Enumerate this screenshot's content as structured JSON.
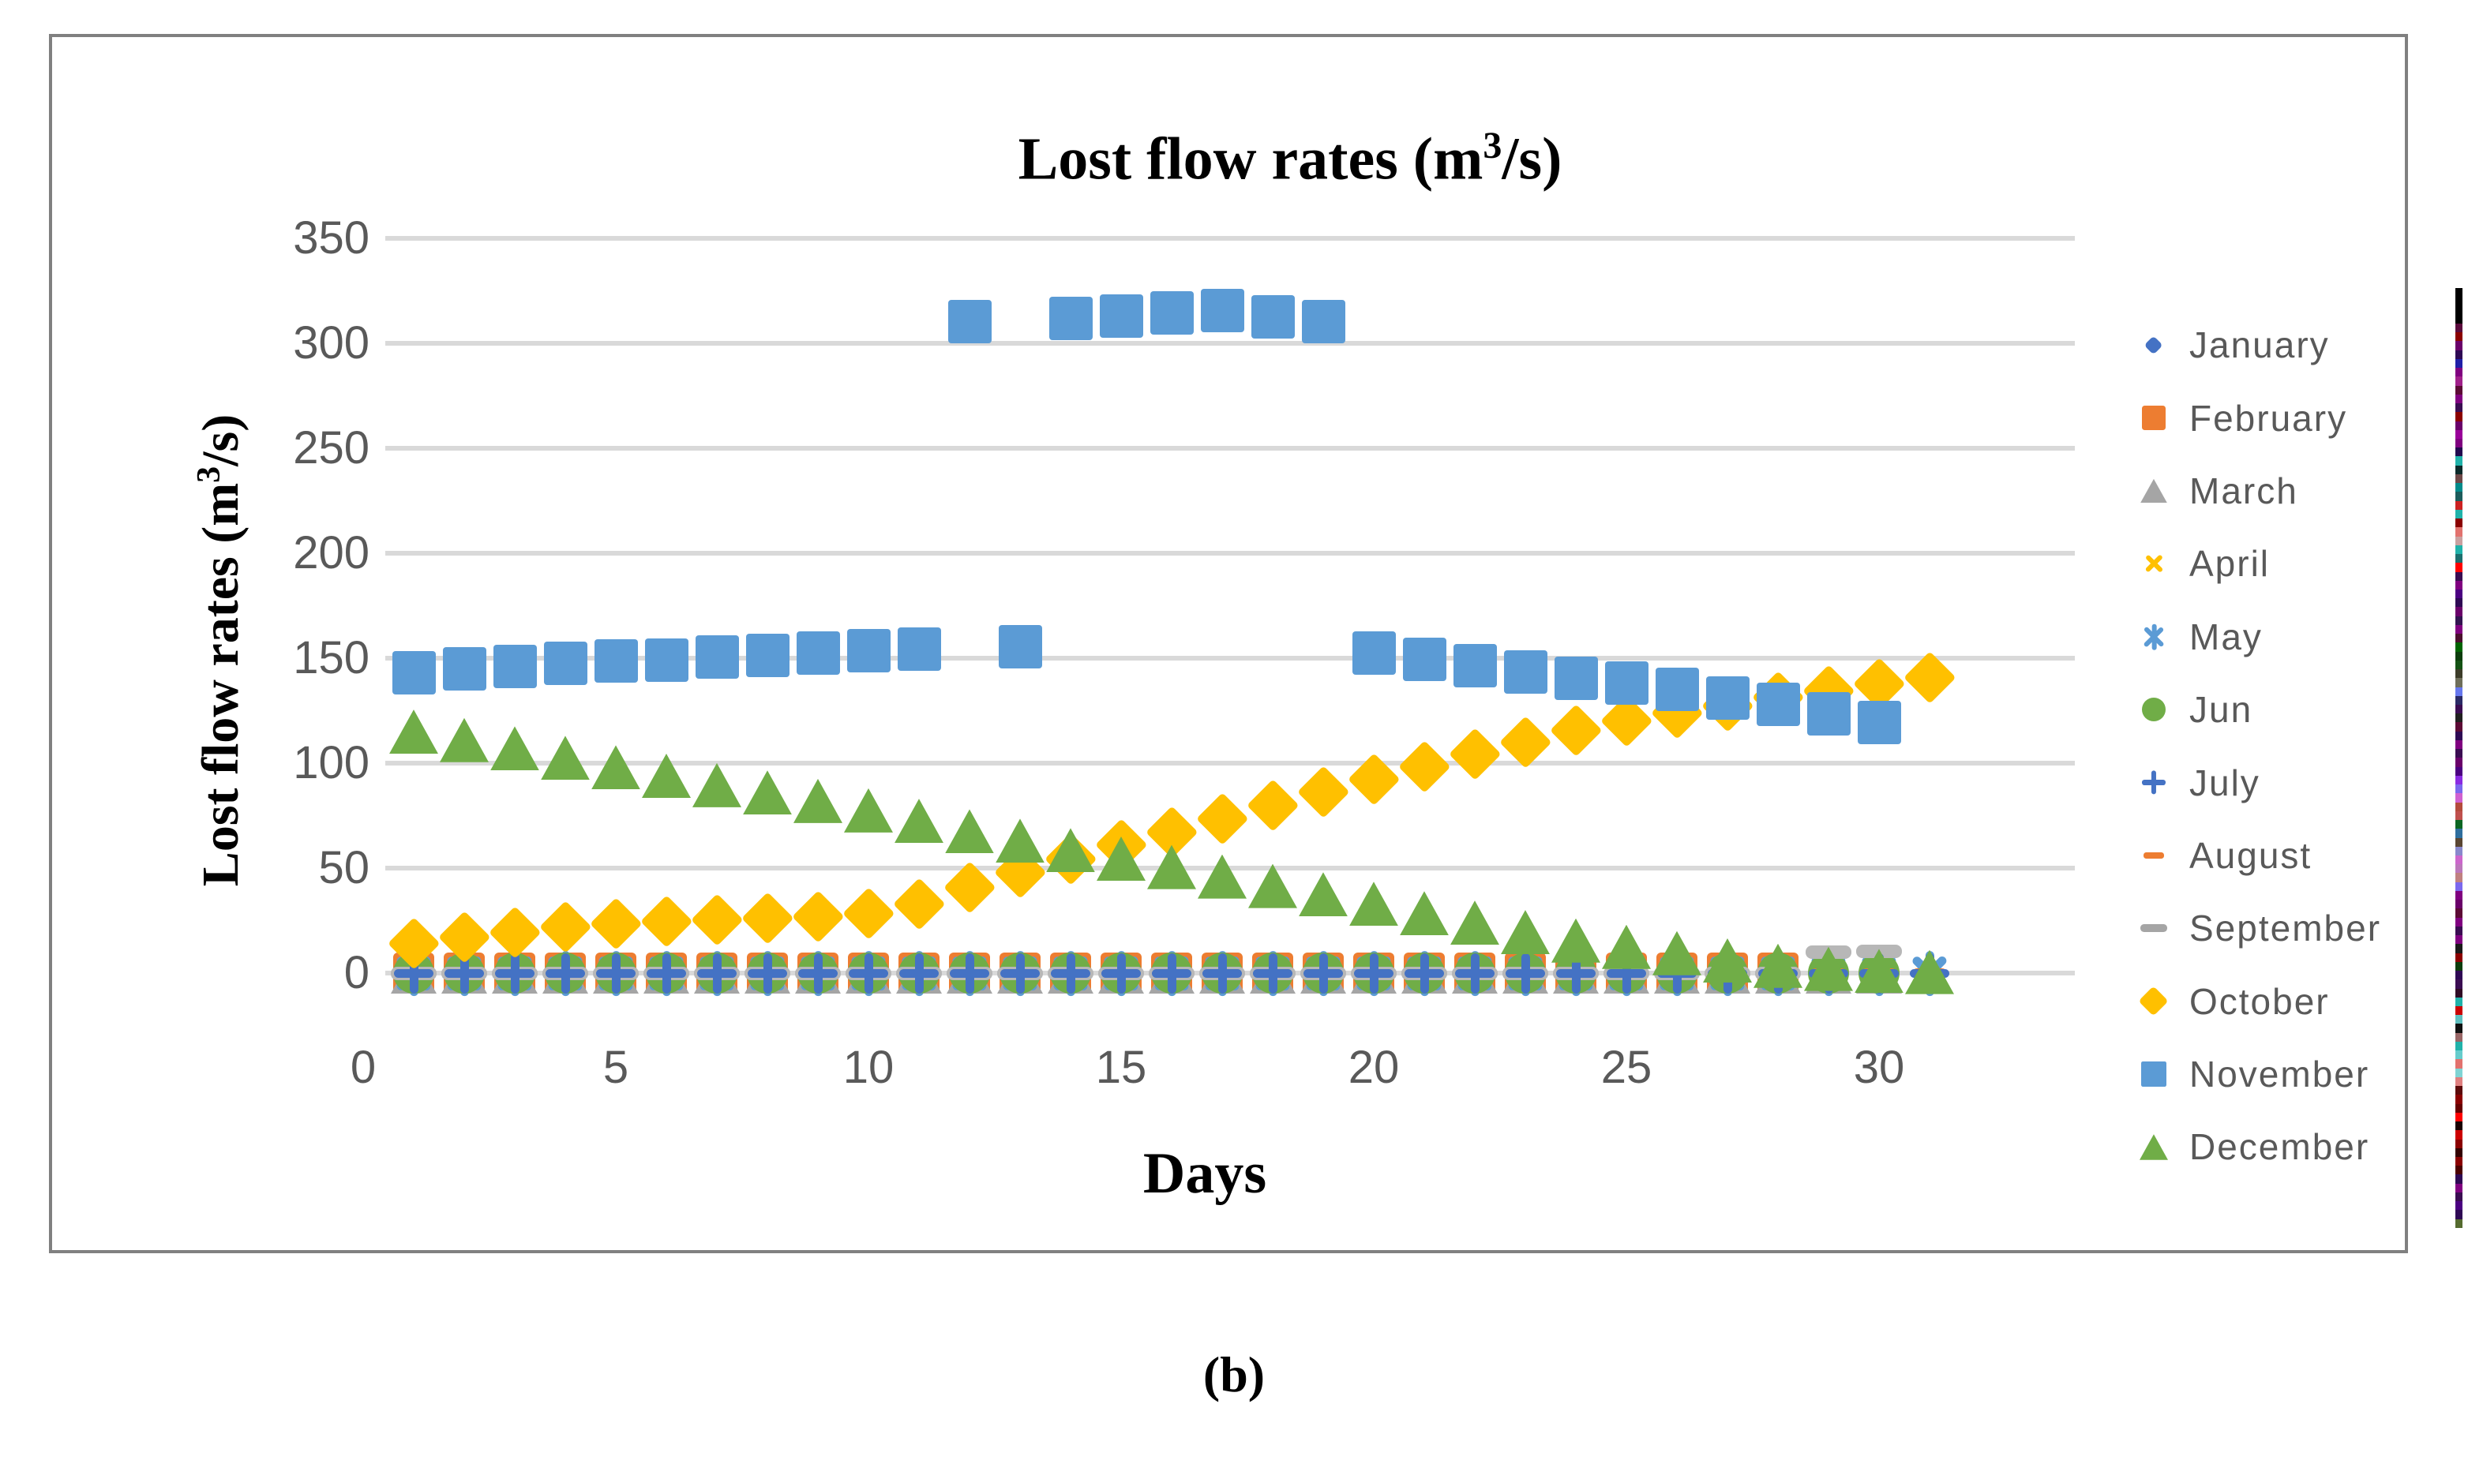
{
  "figure": {
    "caption": "(b)",
    "border_color": "#808080",
    "background": "#ffffff"
  },
  "chart": {
    "title": {
      "pre": "Lost flow rates (m",
      "sup": "3",
      "post": "/s)"
    },
    "y_axis": {
      "title": {
        "pre": "Lost flow rates (m",
        "sup": "3",
        "post": "/s)"
      },
      "ticks": [
        0,
        50,
        100,
        150,
        200,
        250,
        300,
        350
      ],
      "min": 0,
      "max": 350
    },
    "x_axis": {
      "title": "Days",
      "ticks": [
        0,
        5,
        10,
        15,
        20,
        25,
        30
      ],
      "min": 0,
      "max": 32
    },
    "colors": {
      "gridline": "#D9D9D9",
      "tick_text": "#595959",
      "legend_text": "#595959",
      "border": "#808080",
      "title_text": "#000000"
    }
  },
  "chart_data": {
    "type": "scatter",
    "title": "Lost flow rates (m3/s)",
    "xlabel": "Days",
    "ylabel": "Lost flow rates (m3/s)",
    "x": [
      1,
      2,
      3,
      4,
      5,
      6,
      7,
      8,
      9,
      10,
      11,
      12,
      13,
      14,
      15,
      16,
      17,
      18,
      19,
      20,
      21,
      22,
      23,
      24,
      25,
      26,
      27,
      28,
      29,
      30,
      31
    ],
    "xlim": [
      0,
      32
    ],
    "ylim": [
      0,
      350
    ],
    "grid": true,
    "legend_position": "right",
    "series": [
      {
        "name": "January",
        "marker": "diamond",
        "color": "#4472C4",
        "values": [
          0,
          0,
          0,
          0,
          0,
          0,
          0,
          0,
          0,
          0,
          0,
          0,
          0,
          0,
          0,
          0,
          0,
          0,
          0,
          0,
          0,
          0,
          0,
          0,
          0,
          0,
          0,
          0,
          0,
          0,
          0
        ]
      },
      {
        "name": "February",
        "marker": "square",
        "color": "#ED7D31",
        "values": [
          0,
          0,
          0,
          0,
          0,
          0,
          0,
          0,
          0,
          0,
          0,
          0,
          0,
          0,
          0,
          0,
          0,
          0,
          0,
          0,
          0,
          0,
          0,
          0,
          0,
          0,
          0,
          0,
          null,
          null,
          null
        ]
      },
      {
        "name": "March",
        "marker": "triangle",
        "color": "#A5A5A5",
        "values": [
          0,
          0,
          0,
          0,
          0,
          0,
          0,
          0,
          0,
          0,
          0,
          0,
          0,
          0,
          0,
          0,
          0,
          0,
          0,
          0,
          0,
          0,
          0,
          0,
          0,
          0,
          0,
          0,
          0,
          0,
          0
        ]
      },
      {
        "name": "April",
        "marker": "x",
        "color": "#FFC000",
        "values": [
          0,
          0,
          0,
          0,
          0,
          0,
          0,
          0,
          0,
          0,
          0,
          0,
          0,
          0,
          0,
          0,
          0,
          0,
          0,
          0,
          0,
          0,
          0,
          0,
          0,
          0,
          0,
          0,
          0,
          0,
          null
        ]
      },
      {
        "name": "May",
        "marker": "asterisk",
        "color": "#5B9BD5",
        "values": [
          0,
          0,
          0,
          0,
          0,
          0,
          0,
          0,
          0,
          0,
          0,
          0,
          0,
          0,
          0,
          0,
          0,
          0,
          0,
          0,
          0,
          0,
          0,
          0,
          0,
          0,
          0,
          0,
          0,
          0,
          0
        ]
      },
      {
        "name": "Jun",
        "marker": "circle",
        "color": "#70AD47",
        "values": [
          0,
          0,
          0,
          0,
          0,
          0,
          0,
          0,
          0,
          0,
          0,
          0,
          0,
          0,
          0,
          0,
          0,
          0,
          0,
          0,
          0,
          0,
          0,
          0,
          0,
          0,
          0,
          0,
          0,
          0,
          null
        ]
      },
      {
        "name": "July",
        "marker": "plus",
        "color": "#4472C4",
        "values": [
          0,
          0,
          0,
          0,
          0,
          0,
          0,
          0,
          0,
          0,
          0,
          0,
          0,
          0,
          0,
          0,
          0,
          0,
          0,
          0,
          0,
          0,
          0,
          0,
          0,
          0,
          0,
          0,
          0,
          0,
          0
        ]
      },
      {
        "name": "August",
        "marker": "dash",
        "color": "#ED7D31",
        "values": [
          0,
          0,
          0,
          0,
          0,
          0,
          0,
          0,
          0,
          0,
          0,
          0,
          0,
          0,
          0,
          0,
          0,
          0,
          0,
          0,
          0,
          0,
          0,
          0,
          0,
          0,
          0,
          0,
          0,
          0,
          0
        ]
      },
      {
        "name": "September",
        "marker": "dash",
        "color": "#B7B7B7",
        "values": [
          0,
          0,
          0,
          0,
          0,
          0,
          0,
          0,
          0,
          0,
          0,
          0,
          0,
          0,
          0,
          0,
          0,
          0,
          0,
          0,
          0,
          0,
          0,
          0,
          0,
          0,
          0,
          0,
          10,
          10.5,
          null
        ]
      },
      {
        "name": "October",
        "marker": "diamond",
        "color": "#FFC000",
        "values": [
          14,
          17,
          19.5,
          22,
          23.5,
          24.5,
          25.5,
          26,
          27,
          28.5,
          33,
          41,
          48,
          54.5,
          61,
          67,
          73.5,
          80,
          86.5,
          92.5,
          98.5,
          104.5,
          110,
          115.5,
          120,
          124,
          127.5,
          131.5,
          134.5,
          138,
          141
        ]
      },
      {
        "name": "November",
        "marker": "square",
        "color": "#5B9BD5",
        "values": [
          143,
          145,
          146,
          147.5,
          148.5,
          149,
          150.5,
          151.5,
          152.5,
          153.5,
          154.5,
          310.5,
          155.5,
          312,
          313,
          314.5,
          315.5,
          312.5,
          310.5,
          152.5,
          149.5,
          146.5,
          143.5,
          140.5,
          138,
          135,
          131,
          128,
          123.5,
          119.5,
          null
        ]
      },
      {
        "name": "December",
        "marker": "triangle",
        "color": "#70AD47",
        "values": [
          115,
          111,
          107,
          102.5,
          98,
          94,
          89.5,
          86,
          82,
          77.5,
          72.5,
          67.5,
          63,
          58.5,
          54.5,
          50.5,
          46,
          41.5,
          37.5,
          33,
          28.5,
          24,
          19.5,
          15.5,
          12.5,
          9.5,
          6,
          3.5,
          2,
          1,
          0.5
        ]
      }
    ]
  },
  "legend": {
    "items": [
      {
        "label": "January",
        "icon": "diamond-icon",
        "color": "#4472C4"
      },
      {
        "label": "February",
        "icon": "square-icon",
        "color": "#ED7D31"
      },
      {
        "label": "March",
        "icon": "triangle-icon",
        "color": "#A5A5A5"
      },
      {
        "label": "April",
        "icon": "x-icon",
        "color": "#FFC000"
      },
      {
        "label": "May",
        "icon": "asterisk-icon",
        "color": "#5B9BD5"
      },
      {
        "label": "Jun",
        "icon": "circle-icon",
        "color": "#70AD47"
      },
      {
        "label": "July",
        "icon": "plus-icon",
        "color": "#4472C4"
      },
      {
        "label": "August",
        "icon": "dash-icon",
        "color": "#ED7D31"
      },
      {
        "label": "September",
        "icon": "dash-icon",
        "color": "#A5A5A5"
      },
      {
        "label": "October",
        "icon": "diamond-icon",
        "color": "#FFC000"
      },
      {
        "label": "November",
        "icon": "square-icon",
        "color": "#5B9BD5"
      },
      {
        "label": "December",
        "icon": "triangle-icon",
        "color": "#70AD47"
      }
    ]
  },
  "artifact_strip": {
    "colors": [
      "#000000",
      "#000000",
      "#000000",
      "#000000",
      "#5a0a3c",
      "#8b0000",
      "#6a006a",
      "#2e0854",
      "#1f1fa8",
      "#800080",
      "#a0208a",
      "#5c0a35",
      "#800080",
      "#3a0c52",
      "#8b0000",
      "#6a006a",
      "#9a009a",
      "#800080",
      "#22074e",
      "#20b2aa",
      "#0b2a2a",
      "#6e4848",
      "#008b8b",
      "#1c5c5c",
      "#cc2222",
      "#20b2aa",
      "#8b0000",
      "#e2726e",
      "#c9a0a0",
      "#20b2aa",
      "#1c6e6e",
      "#ff0000",
      "#3a0c52",
      "#800080",
      "#4b0082",
      "#2e0854",
      "#6a006a",
      "#321450",
      "#800080",
      "#4b0f2e",
      "#006400",
      "#0b3d0b",
      "#145214",
      "#3c3c28",
      "#6e6e5a",
      "#6677ee",
      "#2a2a66",
      "#3a0c52",
      "#202020",
      "#5c0a35",
      "#2e0854",
      "#800080",
      "#3a0c52",
      "#6a006a",
      "#4b0082",
      "#8a2be2",
      "#7b68ee",
      "#d060d0",
      "#b44b3c",
      "#c0504d",
      "#0b6623",
      "#2e6e9e",
      "#5a4632",
      "#8888cc",
      "#cc66cc",
      "#bb77bb",
      "#c08080",
      "#7b68ee",
      "#800080",
      "#6a006a",
      "#5c0a35",
      "#800080",
      "#3a0c52",
      "#800080",
      "#1a1a1a",
      "#8b0000",
      "#0b3d0b",
      "#2e0854",
      "#3a0c52",
      "#300a24",
      "#20b2aa",
      "#cc0000",
      "#5fbfbf",
      "#101010",
      "#996666",
      "#20b2aa",
      "#66cccc",
      "#e2726e",
      "#7fd4d4",
      "#e08080",
      "#5c0a0a",
      "#8b0000",
      "#660000",
      "#ff0000",
      "#1a0000",
      "#cc0000",
      "#8b0000",
      "#330000",
      "#8b0000",
      "#4b0000",
      "#2e0854",
      "#800080",
      "#3a0c52",
      "#4b0082",
      "#2e0854",
      "#556b2f"
    ]
  }
}
